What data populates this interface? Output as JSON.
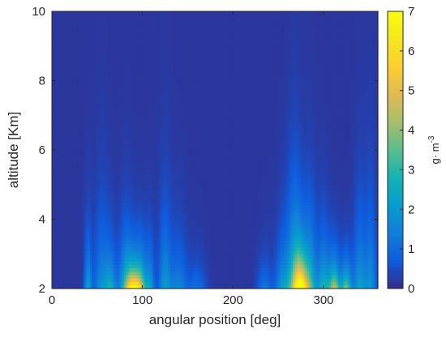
{
  "chart_data": {
    "type": "heatmap",
    "title": "",
    "xlabel": "angular position [deg]",
    "ylabel": "altitude [Km]",
    "xlim": [
      0,
      360
    ],
    "ylim": [
      2,
      10
    ],
    "x_ticks": [
      0,
      100,
      200,
      300
    ],
    "y_ticks": [
      2,
      4,
      6,
      8,
      10
    ],
    "grid": false,
    "colormap": "parula",
    "colorbar": {
      "label_base": "g· m",
      "label_exp": "-3",
      "range": [
        0,
        7
      ],
      "ticks": [
        0,
        1,
        2,
        3,
        4,
        5,
        6,
        7
      ]
    },
    "features": [
      {
        "angle": 40,
        "amplitude": 2.2,
        "width_deg": 4,
        "top_km": 4.5
      },
      {
        "angle": 55,
        "amplitude": 1.8,
        "width_deg": 8,
        "top_km": 5.5
      },
      {
        "angle": 65,
        "amplitude": 2.3,
        "width_deg": 6,
        "top_km": 4.0
      },
      {
        "angle": 82,
        "amplitude": 3.0,
        "width_deg": 8,
        "top_km": 4.5
      },
      {
        "angle": 90,
        "amplitude": 6.0,
        "width_deg": 7,
        "top_km": 3.2
      },
      {
        "angle": 98,
        "amplitude": 4.0,
        "width_deg": 6,
        "top_km": 3.8
      },
      {
        "angle": 108,
        "amplitude": 2.2,
        "width_deg": 5,
        "top_km": 4.2
      },
      {
        "angle": 125,
        "amplitude": 2.0,
        "width_deg": 7,
        "top_km": 5.5
      },
      {
        "angle": 140,
        "amplitude": 1.5,
        "width_deg": 9,
        "top_km": 4.5
      },
      {
        "angle": 160,
        "amplitude": 1.0,
        "width_deg": 10,
        "top_km": 3.5
      },
      {
        "angle": 235,
        "amplitude": 1.2,
        "width_deg": 8,
        "top_km": 3.5
      },
      {
        "angle": 255,
        "amplitude": 2.0,
        "width_deg": 8,
        "top_km": 4.5
      },
      {
        "angle": 268,
        "amplitude": 3.5,
        "width_deg": 8,
        "top_km": 6.0
      },
      {
        "angle": 275,
        "amplitude": 6.5,
        "width_deg": 7,
        "top_km": 3.8
      },
      {
        "angle": 285,
        "amplitude": 3.2,
        "width_deg": 7,
        "top_km": 5.2
      },
      {
        "angle": 300,
        "amplitude": 2.8,
        "width_deg": 7,
        "top_km": 4.5
      },
      {
        "angle": 312,
        "amplitude": 4.5,
        "width_deg": 6,
        "top_km": 3.5
      },
      {
        "angle": 325,
        "amplitude": 3.8,
        "width_deg": 6,
        "top_km": 3.4
      },
      {
        "angle": 340,
        "amplitude": 2.2,
        "width_deg": 7,
        "top_km": 5.5
      },
      {
        "angle": 352,
        "amplitude": 1.8,
        "width_deg": 6,
        "top_km": 6.2
      }
    ]
  }
}
